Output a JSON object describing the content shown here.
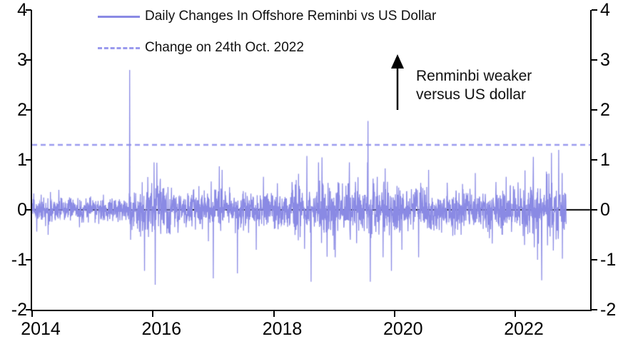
{
  "figure": {
    "background": "#ffffff",
    "series_color": "#8a8ae4",
    "reference_color": "#9a9aee",
    "axis_color": "#000000"
  },
  "legend": {
    "items": [
      {
        "label": "Daily Changes In Offshore Reminbi vs US Dollar",
        "style": "solid"
      },
      {
        "label": "Change on 24th Oct. 2022",
        "style": "dashed"
      }
    ]
  },
  "annotation": {
    "line1": "Renminbi weaker",
    "line2": "versus US dollar",
    "arrow": "up-arrow"
  },
  "chart_data": {
    "type": "line",
    "title": "Daily Changes In Offshore Reminbi vs US Dollar",
    "xlabel": "",
    "ylabel": "",
    "ylim": [
      -2,
      4
    ],
    "yticks": [
      4,
      3,
      2,
      1,
      0,
      -1,
      -2
    ],
    "xticks": [
      2014,
      2016,
      2018,
      2020,
      2022
    ],
    "x_range": [
      2014.0,
      2022.845
    ],
    "grid": false,
    "zero_line": 0,
    "reference_line": {
      "label": "Change on 24th Oct. 2022",
      "value": 1.3,
      "style": "dashed"
    },
    "series": [
      {
        "name": "Daily Changes In Offshore Reminbi vs US Dollar",
        "unit": "% daily change",
        "points_per_year": 260,
        "noise_segments": [
          {
            "from": 2014.0,
            "to": 2015.6,
            "sigma": 0.11,
            "cap": 0.5
          },
          {
            "from": 2015.6,
            "to": 2016.3,
            "sigma": 0.27,
            "cap": 0.95
          },
          {
            "from": 2016.3,
            "to": 2018.3,
            "sigma": 0.18,
            "cap": 0.8
          },
          {
            "from": 2018.3,
            "to": 2020.1,
            "sigma": 0.26,
            "cap": 0.95
          },
          {
            "from": 2020.1,
            "to": 2022.15,
            "sigma": 0.2,
            "cap": 0.8
          },
          {
            "from": 2022.15,
            "to": 2022.85,
            "sigma": 0.3,
            "cap": 1.0
          }
        ],
        "key_points": [
          {
            "x": 2015.615,
            "y": 2.8
          },
          {
            "x": 2015.63,
            "y": -0.6
          },
          {
            "x": 2015.86,
            "y": -1.22
          },
          {
            "x": 2016.02,
            "y": 0.95
          },
          {
            "x": 2016.04,
            "y": -1.5
          },
          {
            "x": 2017.0,
            "y": -1.37
          },
          {
            "x": 2017.1,
            "y": 0.87
          },
          {
            "x": 2017.4,
            "y": -1.27
          },
          {
            "x": 2018.55,
            "y": 1.08
          },
          {
            "x": 2018.62,
            "y": -1.44
          },
          {
            "x": 2018.8,
            "y": 1.05
          },
          {
            "x": 2019.56,
            "y": 1.78
          },
          {
            "x": 2019.6,
            "y": -1.44
          },
          {
            "x": 2019.95,
            "y": -1.22
          },
          {
            "x": 2020.4,
            "y": -0.95
          },
          {
            "x": 2022.3,
            "y": 1.06
          },
          {
            "x": 2022.44,
            "y": -1.41
          },
          {
            "x": 2022.6,
            "y": 1.14
          },
          {
            "x": 2022.72,
            "y": 1.2
          },
          {
            "x": 2022.78,
            "y": -0.98
          },
          {
            "x": 2022.845,
            "y": 1.3
          }
        ]
      }
    ],
    "legend_position": "top-left-inside",
    "annotation_text": "Renminbi weaker versus US dollar"
  }
}
